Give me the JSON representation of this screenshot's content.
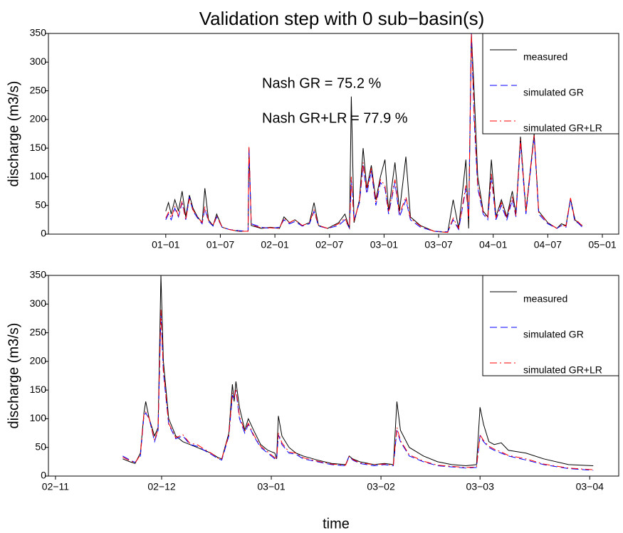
{
  "chart_data": [
    {
      "type": "line",
      "title": "Validation step with 0 sub−basin(s)",
      "ylabel": "discharge (m3/s)",
      "annotations": [
        "Nash GR = 75.2 %",
        "Nash GR+LR = 77.9 %"
      ],
      "legend": "upper right",
      "xlim": [
        -12.9,
        49.8
      ],
      "ylim": [
        0,
        350
      ],
      "xticks": [
        {
          "value": 0,
          "label": "01−01"
        },
        {
          "value": 6,
          "label": "01−07"
        },
        {
          "value": 12,
          "label": "02−01"
        },
        {
          "value": 18,
          "label": "02−07"
        },
        {
          "value": 24,
          "label": "03−01"
        },
        {
          "value": 30,
          "label": "03−07"
        },
        {
          "value": 36,
          "label": "04−01"
        },
        {
          "value": 42,
          "label": "04−07"
        },
        {
          "value": 48,
          "label": "05−01"
        }
      ],
      "yticks": [
        0,
        50,
        100,
        150,
        200,
        250,
        300,
        350
      ],
      "x": [
        0,
        0.3,
        0.6,
        1,
        1.4,
        1.8,
        2.2,
        2.6,
        3,
        3.5,
        4,
        4.3,
        4.7,
        5.2,
        5.6,
        6.2,
        7,
        8,
        9.05,
        9.15,
        9.4,
        10.5,
        11.5,
        12.5,
        13,
        13.6,
        14.2,
        15,
        15.8,
        16.3,
        16.8,
        17.8,
        19,
        19.7,
        20.2,
        20.4,
        20.7,
        21.3,
        21.7,
        22.1,
        22.6,
        23.1,
        23.6,
        24.1,
        24.5,
        25.2,
        25.7,
        26.4,
        26.9,
        28,
        29.5,
        31,
        31.6,
        32.2,
        33,
        33.3,
        33.6,
        33.9,
        34.3,
        34.9,
        35.4,
        35.8,
        36.3,
        36.9,
        37.5,
        38.1,
        38.5,
        39,
        39.6,
        40.5,
        41,
        42,
        43,
        43.5,
        44,
        44.5,
        45,
        45.3,
        45.8
      ],
      "series": [
        {
          "name": "measured",
          "color": "#000000",
          "dash": "solid",
          "values": [
            40,
            55,
            35,
            60,
            40,
            75,
            30,
            68,
            45,
            30,
            20,
            80,
            25,
            15,
            35,
            12,
            8,
            5,
            5,
            150,
            15,
            10,
            12,
            10,
            30,
            20,
            25,
            15,
            20,
            55,
            15,
            10,
            20,
            35,
            10,
            240,
            20,
            60,
            150,
            80,
            120,
            60,
            100,
            130,
            40,
            125,
            40,
            135,
            30,
            15,
            5,
            3,
            60,
            10,
            130,
            10,
            350,
            250,
            100,
            40,
            30,
            130,
            30,
            60,
            30,
            75,
            35,
            170,
            40,
            175,
            40,
            20,
            10,
            18,
            15,
            62,
            25,
            20,
            15
          ]
        },
        {
          "name": "simulated GR",
          "color": "#0000ff",
          "dash": "dashed",
          "values": [
            25,
            35,
            25,
            45,
            30,
            55,
            25,
            65,
            40,
            28,
            18,
            45,
            22,
            14,
            30,
            12,
            8,
            6,
            5,
            150,
            18,
            12,
            10,
            12,
            25,
            18,
            22,
            14,
            18,
            40,
            14,
            10,
            15,
            25,
            10,
            95,
            25,
            55,
            120,
            70,
            110,
            50,
            90,
            80,
            35,
            90,
            30,
            60,
            25,
            12,
            5,
            4,
            25,
            8,
            80,
            30,
            350,
            200,
            80,
            35,
            25,
            100,
            25,
            50,
            25,
            60,
            30,
            160,
            35,
            170,
            35,
            18,
            10,
            15,
            12,
            60,
            20,
            20,
            12
          ]
        },
        {
          "name": "simulated GR+LR",
          "color": "#ff0000",
          "dash": "dashdot",
          "values": [
            28,
            38,
            28,
            48,
            32,
            58,
            25,
            62,
            42,
            30,
            20,
            48,
            24,
            15,
            32,
            12,
            8,
            5,
            5,
            152,
            16,
            11,
            11,
            10,
            28,
            20,
            25,
            15,
            20,
            42,
            15,
            10,
            18,
            28,
            10,
            100,
            22,
            58,
            125,
            75,
            115,
            55,
            95,
            85,
            38,
            95,
            35,
            65,
            28,
            14,
            5,
            3,
            28,
            10,
            85,
            25,
            350,
            210,
            85,
            38,
            28,
            105,
            28,
            55,
            28,
            65,
            32,
            165,
            38,
            172,
            38,
            20,
            10,
            16,
            14,
            63,
            22,
            22,
            14
          ]
        }
      ]
    },
    {
      "type": "line",
      "ylabel": "discharge (m3/s)",
      "xlabel": "time",
      "legend": "upper right",
      "xlim": [
        -2.0,
        159.2
      ],
      "ylim": [
        0,
        350
      ],
      "xticks": [
        {
          "value": 0,
          "label": "02−11"
        },
        {
          "value": 30,
          "label": "02−12"
        },
        {
          "value": 61,
          "label": "03−01"
        },
        {
          "value": 92,
          "label": "03−02"
        },
        {
          "value": 120,
          "label": "03−03"
        },
        {
          "value": 151,
          "label": "03−04"
        }
      ],
      "yticks": [
        0,
        50,
        100,
        150,
        200,
        250,
        300,
        350
      ],
      "x": [
        19,
        21,
        22.5,
        24,
        25,
        25.5,
        26.5,
        28,
        29,
        29.8,
        30.5,
        32,
        34,
        36,
        38,
        40,
        42,
        44,
        46,
        47,
        49,
        50,
        50.5,
        51,
        52,
        53.5,
        54.5,
        56,
        58,
        60,
        62,
        62.5,
        63,
        64,
        66,
        68,
        70,
        74,
        78,
        82,
        83,
        84,
        86,
        90,
        93,
        95.5,
        96.5,
        97.5,
        100,
        104,
        108,
        112,
        116,
        119,
        120,
        121,
        122.5,
        124,
        126,
        128,
        133,
        138,
        145,
        152
      ],
      "series": [
        {
          "name": "measured",
          "color": "#000000",
          "dash": "solid",
          "values": [
            30,
            25,
            22,
            40,
            110,
            130,
            100,
            70,
            85,
            350,
            200,
            100,
            70,
            60,
            55,
            50,
            45,
            40,
            32,
            30,
            75,
            160,
            130,
            165,
            120,
            80,
            100,
            80,
            55,
            45,
            40,
            30,
            105,
            70,
            50,
            40,
            35,
            28,
            22,
            20,
            35,
            30,
            25,
            20,
            22,
            20,
            130,
            80,
            50,
            35,
            25,
            20,
            18,
            20,
            120,
            90,
            60,
            55,
            58,
            45,
            40,
            30,
            20,
            18
          ]
        },
        {
          "name": "simulated GR",
          "color": "#0000ff",
          "dash": "dashed",
          "values": [
            35,
            28,
            24,
            35,
            105,
            110,
            100,
            60,
            80,
            285,
            180,
            90,
            65,
            70,
            55,
            52,
            45,
            38,
            30,
            28,
            70,
            140,
            135,
            150,
            100,
            75,
            90,
            70,
            50,
            40,
            30,
            28,
            72,
            55,
            40,
            38,
            30,
            25,
            20,
            18,
            35,
            28,
            22,
            18,
            20,
            18,
            80,
            60,
            35,
            25,
            18,
            16,
            14,
            15,
            70,
            60,
            50,
            45,
            40,
            35,
            28,
            20,
            13,
            10
          ]
        },
        {
          "name": "simulated GR+LR",
          "color": "#ff0000",
          "dash": "dashdot",
          "values": [
            33,
            27,
            23,
            37,
            108,
            112,
            100,
            62,
            82,
            290,
            185,
            92,
            67,
            72,
            57,
            55,
            47,
            40,
            31,
            30,
            72,
            145,
            138,
            152,
            105,
            78,
            92,
            72,
            52,
            42,
            32,
            29,
            75,
            58,
            42,
            40,
            32,
            26,
            21,
            19,
            34,
            29,
            23,
            20,
            21,
            19,
            85,
            62,
            37,
            26,
            19,
            17,
            15,
            16,
            72,
            62,
            52,
            47,
            42,
            36,
            30,
            21,
            14,
            11
          ]
        }
      ]
    }
  ]
}
